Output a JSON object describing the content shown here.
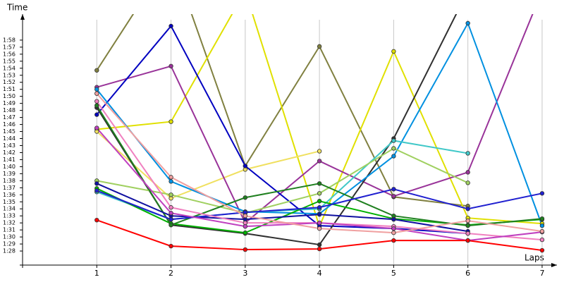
{
  "chart_data": {
    "type": "line",
    "y_label": "Time",
    "x_label": "Laps",
    "x": [
      1,
      2,
      3,
      4,
      5,
      6,
      7
    ],
    "xlim": [
      0,
      7.2
    ],
    "xticks": [
      1,
      2,
      3,
      4,
      5,
      6,
      7
    ],
    "ylim": [
      86,
      121.7
    ],
    "yticks": [
      {
        "value": 88,
        "label": "1:28"
      },
      {
        "value": 89,
        "label": "1:29"
      },
      {
        "value": 90,
        "label": "1:30"
      },
      {
        "value": 91,
        "label": "1:31"
      },
      {
        "value": 92,
        "label": "1:32"
      },
      {
        "value": 93,
        "label": "1:33"
      },
      {
        "value": 94,
        "label": "1:34"
      },
      {
        "value": 95,
        "label": "1:35"
      },
      {
        "value": 96,
        "label": "1:36"
      },
      {
        "value": 97,
        "label": "1:37"
      },
      {
        "value": 98,
        "label": "1:38"
      },
      {
        "value": 99,
        "label": "1:39"
      },
      {
        "value": 100,
        "label": "1:40"
      },
      {
        "value": 101,
        "label": "1:41"
      },
      {
        "value": 102,
        "label": "1:42"
      },
      {
        "value": 103,
        "label": "1:43"
      },
      {
        "value": 104,
        "label": "1:44"
      },
      {
        "value": 105,
        "label": "1:45"
      },
      {
        "value": 106,
        "label": "1:46"
      },
      {
        "value": 107,
        "label": "1:47"
      },
      {
        "value": 108,
        "label": "1:48"
      },
      {
        "value": 109,
        "label": "1:49"
      },
      {
        "value": 110,
        "label": "1:50"
      },
      {
        "value": 111,
        "label": "1:51"
      },
      {
        "value": 112,
        "label": "1:52"
      },
      {
        "value": 113,
        "label": "1:53"
      },
      {
        "value": 114,
        "label": "1:54"
      },
      {
        "value": 115,
        "label": "1:55"
      },
      {
        "value": 116,
        "label": "1:56"
      },
      {
        "value": 117,
        "label": "1:57"
      },
      {
        "value": 118,
        "label": "1:58"
      }
    ],
    "grid": true,
    "series": [
      {
        "color": "#808040",
        "values": [
          113.7,
          130,
          100.1,
          117.1,
          95.7,
          94.4,
          null
        ]
      },
      {
        "color": "#e0e000",
        "values": [
          105.3,
          106.4,
          125,
          91.5,
          116.4,
          92.7,
          91.9
        ]
      },
      {
        "color": "#f0e060",
        "values": [
          105.0,
          95.5,
          99.6,
          102.2,
          null,
          null,
          null
        ]
      },
      {
        "color": "#993399",
        "values": [
          111.3,
          114.3,
          92.0,
          100.8,
          95.8,
          99.2,
          125
        ]
      },
      {
        "color": "#0000c0",
        "values": [
          107.4,
          120.0,
          100.1,
          91.6,
          91.2,
          90.5,
          null
        ]
      },
      {
        "color": "#303030",
        "values": [
          108.4,
          91.7,
          90.5,
          88.9,
          104.0,
          125,
          null
        ]
      },
      {
        "color": "#0090e0",
        "values": [
          111.0,
          97.9,
          93.6,
          93.3,
          101.5,
          120.4,
          91.6
        ]
      },
      {
        "color": "#40c8c8",
        "values": [
          96.4,
          92.5,
          93.5,
          94.0,
          103.7,
          101.9,
          null
        ]
      },
      {
        "color": "#a0d060",
        "values": [
          98.0,
          96.0,
          93.4,
          96.2,
          102.6,
          97.7,
          null
        ]
      },
      {
        "color": "#00b000",
        "values": [
          96.9,
          91.9,
          90.6,
          95.1,
          92.6,
          91.7,
          92.5
        ]
      },
      {
        "color": "#208020",
        "values": [
          108.7,
          91.7,
          95.6,
          97.6,
          93.0,
          91.6,
          92.6
        ]
      },
      {
        "color": "#1010a0",
        "values": [
          97.6,
          93.0,
          92.5,
          93.2,
          92.5,
          90.8,
          null
        ]
      },
      {
        "color": "#2020d0",
        "values": [
          96.6,
          92.5,
          93.5,
          94.2,
          96.8,
          94.0,
          96.2
        ]
      },
      {
        "color": "#f080c0",
        "values": [
          109.3,
          94.2,
          92.0,
          92.0,
          91.5,
          90.5,
          89.6
        ]
      },
      {
        "color": "#c040c0",
        "values": [
          105.5,
          93.4,
          91.5,
          92.0,
          91.2,
          89.5,
          90.7
        ]
      },
      {
        "color": "#f0a0a0",
        "values": [
          110.4,
          98.5,
          93.0,
          91.2,
          90.6,
          92.3,
          90.8
        ]
      },
      {
        "color": "#ff0000",
        "values": [
          92.4,
          88.7,
          88.2,
          88.3,
          89.5,
          89.5,
          88.1
        ]
      }
    ]
  }
}
